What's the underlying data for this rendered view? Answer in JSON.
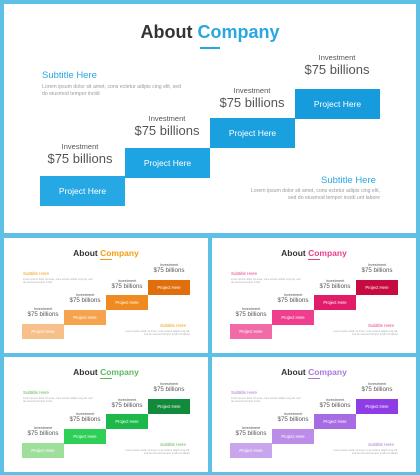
{
  "main": {
    "title_plain": "About",
    "title_accent": "Company",
    "subtitle_left": "Subtitle Here",
    "lorem_left": "Lorem ipsum dolor sit amet, cons ectetur adipis cing elit, sed do eiusmod tempor incidi",
    "subtitle_right": "Subtitle Here",
    "lorem_right": "Lorem ipsum dolor sit amet, cons ectetur adipis cing elit, sed do eiusmod tempor incidi unt labore",
    "investment_label": "Investment",
    "investment_value": "$75 billions",
    "step_label": "Project Here",
    "accent_color": "#1fa7e3"
  },
  "thumbnails": [
    {
      "name": "orange",
      "accent": "#f39c12",
      "steps": [
        "#f7c08a",
        "#f5a34d",
        "#ee8a1f",
        "#e06e0a"
      ]
    },
    {
      "name": "pink",
      "accent": "#e83e8c",
      "steps": [
        "#f06ba8",
        "#ee3f8e",
        "#e11d6a",
        "#c70a3f"
      ]
    },
    {
      "name": "green",
      "accent": "#5cb85c",
      "steps": [
        "#9ee09b",
        "#2ecf57",
        "#1cb84a",
        "#128a3c"
      ]
    },
    {
      "name": "purple",
      "accent": "#a77ad9",
      "steps": [
        "#c9a5ee",
        "#bb8de9",
        "#a76ce3",
        "#8e3de6"
      ]
    }
  ]
}
